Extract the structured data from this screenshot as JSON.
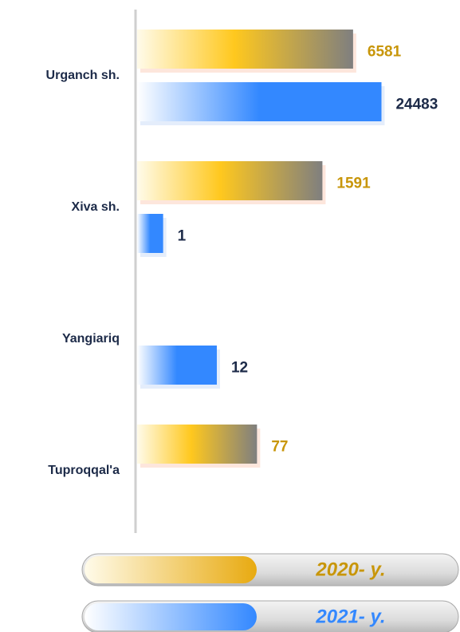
{
  "chart_data": {
    "type": "bar",
    "orientation": "horizontal",
    "log_scale": true,
    "categories": [
      "Urganch sh.",
      "Xiva sh.",
      "Yangiariq",
      "Tuproqqal'a"
    ],
    "series": [
      {
        "name": "2020- y.",
        "color": "#c8960a",
        "values": [
          6581,
          1591,
          null,
          77
        ]
      },
      {
        "name": "2021- y.",
        "color": "#3388ff",
        "values": [
          24483,
          1,
          12,
          null
        ]
      }
    ],
    "xlim": [
      0.3,
      30000
    ]
  }
}
